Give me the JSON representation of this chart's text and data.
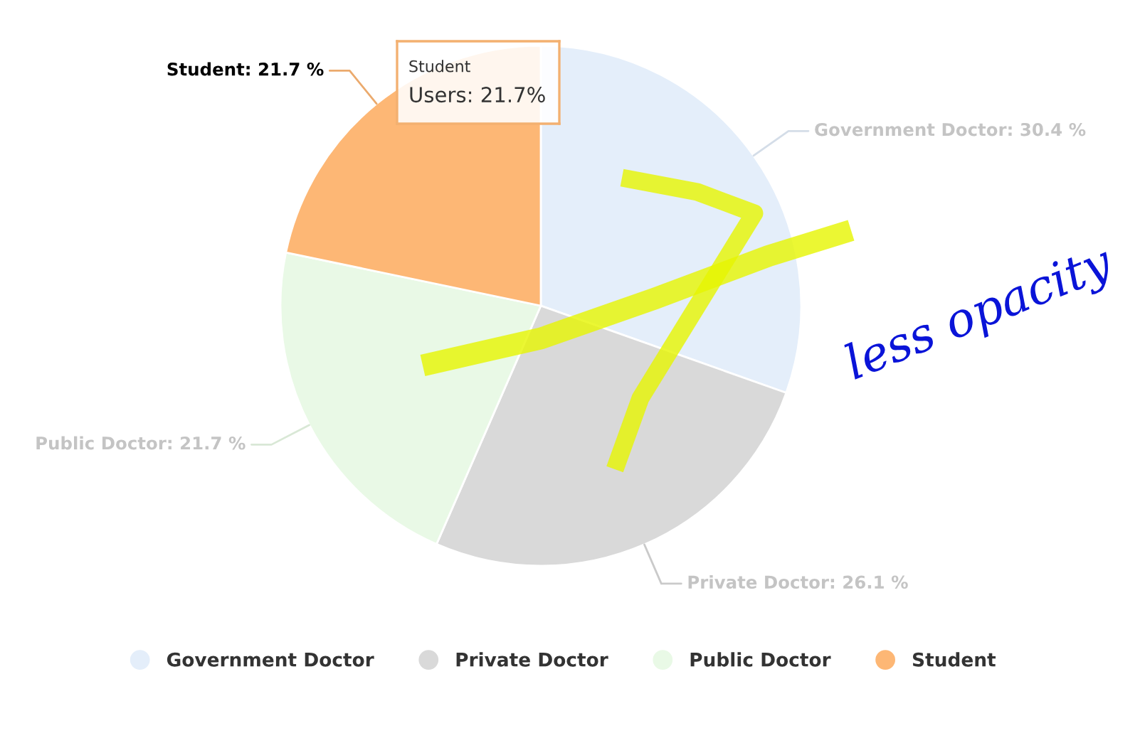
{
  "chart_data": {
    "type": "pie",
    "categories": [
      "Government Doctor",
      "Private Doctor",
      "Public Doctor",
      "Student"
    ],
    "values": [
      30.4,
      26.1,
      21.7,
      21.7
    ],
    "colors": [
      "#e4eefa",
      "#d9d9d9",
      "#e9f9e6",
      "#fdb775"
    ],
    "value_labels": [
      "Government Doctor: 30.4 %",
      "Private Doctor: 26.1 %",
      "Public Doctor: 21.7 %",
      "Student: 21.7 %"
    ],
    "legend": "bottom",
    "annotations": [
      "Student",
      "Users: 21.7%",
      "less opacity"
    ]
  }
}
